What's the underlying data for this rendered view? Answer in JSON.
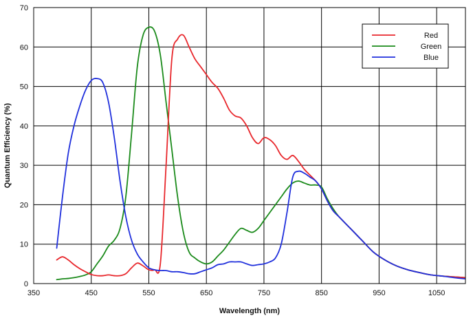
{
  "chart_data": {
    "type": "line",
    "title": "",
    "xlabel": "Wavelength (nm)",
    "ylabel": "Quantum Efficiency (%)",
    "xlim": [
      350,
      1100
    ],
    "ylim": [
      0,
      70
    ],
    "xticks": [
      350,
      450,
      550,
      650,
      750,
      850,
      950,
      1050
    ],
    "yticks": [
      0,
      10,
      20,
      30,
      40,
      50,
      60,
      70
    ],
    "grid": true,
    "legend_position": "top-right",
    "series": [
      {
        "name": "Red",
        "color": "#e8262b",
        "x": [
          390,
          400,
          410,
          420,
          430,
          440,
          450,
          460,
          470,
          480,
          490,
          500,
          510,
          520,
          530,
          540,
          550,
          560,
          570,
          580,
          590,
          600,
          610,
          620,
          630,
          640,
          650,
          660,
          670,
          680,
          690,
          700,
          710,
          720,
          730,
          740,
          750,
          760,
          770,
          780,
          790,
          800,
          810,
          820,
          830,
          840,
          850,
          860,
          870,
          880,
          890,
          900,
          920,
          940,
          960,
          980,
          1000,
          1020,
          1040,
          1060,
          1080,
          1100
        ],
        "y": [
          6,
          6.8,
          6,
          4.8,
          3.8,
          3,
          2.3,
          2,
          2,
          2.2,
          2,
          2,
          2.5,
          4,
          5.2,
          4.5,
          3.5,
          3.5,
          5,
          30,
          57,
          62,
          63,
          60,
          57,
          55,
          53,
          51,
          49.5,
          47,
          44,
          42.5,
          42,
          40,
          37,
          35.5,
          37,
          36.5,
          35,
          32.5,
          31.5,
          32.5,
          31,
          29,
          27.5,
          26,
          24,
          21,
          18.5,
          17,
          15.5,
          14,
          11,
          8,
          6,
          4.5,
          3.5,
          2.8,
          2.2,
          1.9,
          1.7,
          1.5
        ]
      },
      {
        "name": "Green",
        "color": "#1a8a1a",
        "x": [
          390,
          400,
          410,
          420,
          430,
          440,
          450,
          460,
          470,
          480,
          490,
          500,
          510,
          520,
          530,
          540,
          550,
          560,
          570,
          580,
          590,
          600,
          610,
          620,
          630,
          640,
          650,
          660,
          670,
          680,
          690,
          700,
          710,
          720,
          730,
          740,
          750,
          760,
          770,
          780,
          790,
          800,
          810,
          820,
          830,
          840,
          850,
          860,
          870,
          880,
          890,
          900,
          920,
          940,
          960,
          980,
          1000,
          1020,
          1040,
          1060,
          1080,
          1100
        ],
        "y": [
          1,
          1.2,
          1.3,
          1.5,
          1.8,
          2.2,
          3,
          5,
          7,
          9.5,
          11,
          14,
          22,
          38,
          55,
          63,
          65,
          64,
          58,
          46,
          34,
          22,
          13,
          8,
          6.5,
          5.5,
          5,
          5.5,
          7,
          8.5,
          10.5,
          12.5,
          14,
          13.5,
          13,
          14,
          16,
          18,
          20,
          22,
          24,
          25.5,
          26,
          25.5,
          25,
          25,
          24.5,
          21.5,
          19,
          17,
          15.5,
          14,
          11,
          8,
          6,
          4.5,
          3.5,
          2.8,
          2.2,
          1.9,
          1.7,
          1.5
        ]
      },
      {
        "name": "Blue",
        "color": "#1f2fdc",
        "x": [
          390,
          400,
          410,
          420,
          430,
          440,
          450,
          460,
          470,
          480,
          490,
          500,
          510,
          520,
          530,
          540,
          550,
          560,
          570,
          580,
          590,
          600,
          610,
          620,
          630,
          640,
          650,
          660,
          670,
          680,
          690,
          700,
          710,
          720,
          730,
          740,
          750,
          760,
          770,
          780,
          790,
          800,
          810,
          820,
          830,
          840,
          850,
          860,
          870,
          880,
          890,
          900,
          920,
          940,
          960,
          980,
          1000,
          1020,
          1040,
          1060,
          1080,
          1100
        ],
        "y": [
          9,
          22,
          33,
          40,
          45,
          49,
          51.5,
          52,
          51,
          46,
          37,
          26,
          17,
          11,
          7.5,
          5.5,
          4,
          3.5,
          3.3,
          3.3,
          3,
          3,
          2.8,
          2.5,
          2.5,
          3,
          3.5,
          4,
          4.8,
          5,
          5.5,
          5.5,
          5.5,
          5,
          4.6,
          4.8,
          5,
          5.5,
          6.5,
          10,
          18,
          27,
          28.5,
          28,
          27,
          26,
          24,
          21,
          18.5,
          17,
          15.5,
          14,
          11,
          8,
          6,
          4.5,
          3.5,
          2.8,
          2.2,
          1.9,
          1.5,
          1.2
        ]
      }
    ]
  }
}
